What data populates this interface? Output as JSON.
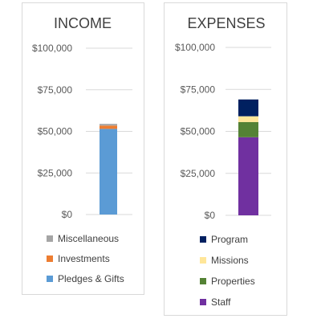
{
  "chart_data": [
    {
      "type": "bar",
      "stacked": true,
      "title": "INCOME",
      "ylim": [
        0,
        100000
      ],
      "yticks": [
        "$0",
        "$25,000",
        "$50,000",
        "$75,000",
        "$100,000"
      ],
      "ytick_values": [
        0,
        25000,
        50000,
        75000,
        100000
      ],
      "grid": true,
      "legend_position": "bottom",
      "series": [
        {
          "name": "Pledges & Gifts",
          "value": 51500,
          "color": "#5b9bd5"
        },
        {
          "name": "Investments",
          "value": 2000,
          "color": "#ed7d31"
        },
        {
          "name": "Miscellaneous",
          "value": 1000,
          "color": "#a5a5a5"
        }
      ]
    },
    {
      "type": "bar",
      "stacked": true,
      "title": "EXPENSES",
      "ylim": [
        0,
        100000
      ],
      "yticks": [
        "$0",
        "$25,000",
        "$50,000",
        "$75,000",
        "$100,000"
      ],
      "ytick_values": [
        0,
        25000,
        50000,
        75000,
        100000
      ],
      "grid": true,
      "legend_position": "bottom",
      "series": [
        {
          "name": "Staff",
          "value": 46500,
          "color": "#7030a0"
        },
        {
          "name": "Properties",
          "value": 9000,
          "color": "#548235"
        },
        {
          "name": "Missions",
          "value": 3500,
          "color": "#ffe699"
        },
        {
          "name": "Program",
          "value": 10000,
          "color": "#002060"
        }
      ]
    }
  ]
}
